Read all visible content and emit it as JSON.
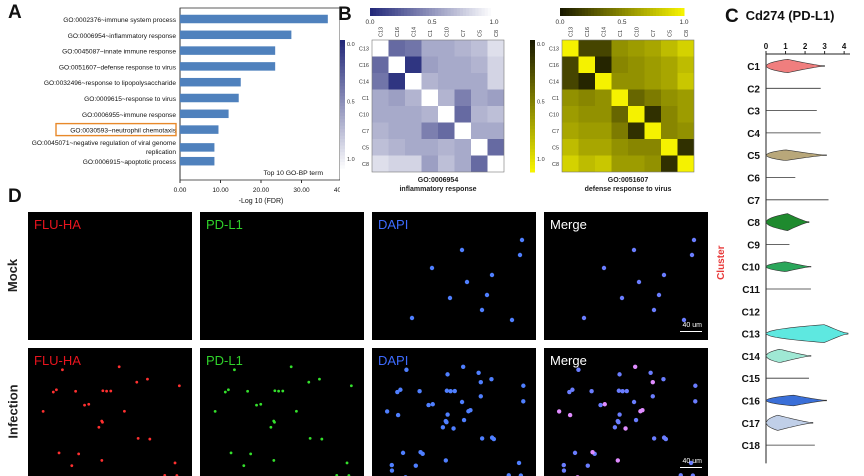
{
  "panels": {
    "A": "A",
    "B": "B",
    "C": "C",
    "D": "D"
  },
  "chart_data": [
    {
      "type": "bar",
      "panel": "A",
      "orientation": "horizontal",
      "categories": [
        "GO:0002376~immune system process",
        "GO:0006954~inflammatory response",
        "GO:0045087~innate immune response",
        "GO:0051607~defense response to virus",
        "GO:0032496~response to lipopolysaccharide",
        "GO:0009615~response to virus",
        "GO:0006955~immune response",
        "GO:0030593~neutrophil chemotaxis",
        "GO:0045071~negative regulation of viral genome replication",
        "GO:0006915~apoptotic process"
      ],
      "values": [
        36.5,
        27.5,
        23.5,
        23.5,
        15,
        14.5,
        12,
        9.5,
        8.5,
        8.5
      ],
      "highlight_index": 7,
      "highlight_color": "#e8892a",
      "bar_color": "#4f81bd",
      "xlabel": "-Log 10 (FDR)",
      "xticks": [
        "0.00",
        "10.00",
        "20.00",
        "30.00",
        "40.00"
      ],
      "xlim": [
        0,
        40
      ],
      "annotation": "Top 10 GO-BP term"
    },
    {
      "type": "heatmap",
      "panel": "B-left",
      "labels": [
        "C13",
        "C16",
        "C14",
        "C1",
        "C10",
        "C7",
        "C5",
        "C8"
      ],
      "colorbar_ticks": [
        "0.0",
        "0.5",
        "1.0"
      ],
      "side_ticks": [
        "0.0",
        "0.5",
        "1.0"
      ],
      "colormap": [
        "#242a7a",
        "#ffffff"
      ],
      "matrix": [
        [
          1,
          0.3,
          0.35,
          0.6,
          0.6,
          0.65,
          0.7,
          0.85
        ],
        [
          0.3,
          1,
          0.05,
          0.55,
          0.6,
          0.6,
          0.65,
          0.8
        ],
        [
          0.35,
          0.05,
          1,
          0.65,
          0.6,
          0.6,
          0.6,
          0.8
        ],
        [
          0.6,
          0.55,
          0.65,
          1,
          0.65,
          0.4,
          0.6,
          0.55
        ],
        [
          0.6,
          0.6,
          0.6,
          0.65,
          1,
          0.3,
          0.65,
          0.7
        ],
        [
          0.65,
          0.6,
          0.6,
          0.4,
          0.3,
          1,
          0.6,
          0.6
        ],
        [
          0.7,
          0.65,
          0.6,
          0.6,
          0.65,
          0.6,
          1,
          0.3
        ],
        [
          0.85,
          0.8,
          0.8,
          0.55,
          0.7,
          0.6,
          0.3,
          1
        ]
      ],
      "caption_line1": "GO:0006954",
      "caption_line2": "inflammatory response"
    },
    {
      "type": "heatmap",
      "panel": "B-right",
      "labels": [
        "C13",
        "C16",
        "C14",
        "C1",
        "C10",
        "C7",
        "C5",
        "C8"
      ],
      "colorbar_ticks": [
        "0.0",
        "0.5",
        "1.0"
      ],
      "side_ticks": [
        "0.0",
        "0.5",
        "1.0"
      ],
      "colormap": [
        "#1a1a00",
        "#f5f200"
      ],
      "matrix": [
        [
          1,
          0.2,
          0.2,
          0.55,
          0.6,
          0.65,
          0.75,
          0.85
        ],
        [
          0.2,
          1,
          0.05,
          0.5,
          0.55,
          0.6,
          0.65,
          0.75
        ],
        [
          0.2,
          0.05,
          1,
          0.55,
          0.55,
          0.6,
          0.65,
          0.8
        ],
        [
          0.55,
          0.5,
          0.55,
          1,
          0.35,
          0.45,
          0.55,
          0.6
        ],
        [
          0.6,
          0.55,
          0.55,
          0.35,
          1,
          0.1,
          0.5,
          0.6
        ],
        [
          0.65,
          0.6,
          0.6,
          0.45,
          0.1,
          1,
          0.5,
          0.55
        ],
        [
          0.75,
          0.65,
          0.65,
          0.55,
          0.5,
          0.5,
          1,
          0.1
        ],
        [
          0.85,
          0.75,
          0.8,
          0.6,
          0.6,
          0.55,
          0.1,
          1
        ]
      ],
      "caption_line1": "GO:0051607",
      "caption_line2": "defense response to virus"
    },
    {
      "type": "violin",
      "panel": "C",
      "title": "Cd274 (PD-L1)",
      "ylabel": "Cluster",
      "xticks": [
        "0",
        "1",
        "2",
        "3",
        "4"
      ],
      "xlim": [
        0,
        4.3
      ],
      "clusters": [
        {
          "name": "C1",
          "color": "#f07e7e",
          "max": 3.0,
          "width": 0.75,
          "peak": 1.1
        },
        {
          "name": "C2",
          "color": "#c0c0c0",
          "max": 2.8,
          "width": 0.02,
          "peak": 1
        },
        {
          "name": "C3",
          "color": "#c0c0c0",
          "max": 2.6,
          "width": 0.02,
          "peak": 1
        },
        {
          "name": "C4",
          "color": "#c0c0c0",
          "max": 2.8,
          "width": 0.02,
          "peak": 1
        },
        {
          "name": "C5",
          "color": "#b8a77a",
          "max": 3.1,
          "width": 0.6,
          "peak": 1.0
        },
        {
          "name": "C6",
          "color": "#c0c0c0",
          "max": 1.5,
          "width": 0.02,
          "peak": 1
        },
        {
          "name": "C7",
          "color": "#c0c0c0",
          "max": 3.2,
          "width": 0.02,
          "peak": 1
        },
        {
          "name": "C8",
          "color": "#1f8a2e",
          "max": 2.2,
          "width": 0.95,
          "peak": 1.1
        },
        {
          "name": "C9",
          "color": "#c0c0c0",
          "max": 1.2,
          "width": 0.02,
          "peak": 1
        },
        {
          "name": "C10",
          "color": "#2aa65a",
          "max": 2.3,
          "width": 0.55,
          "peak": 1.0
        },
        {
          "name": "C11",
          "color": "#c0c0c0",
          "max": 2.3,
          "width": 0.02,
          "peak": 1
        },
        {
          "name": "C12",
          "color": "#c0c0c0",
          "max": 0.1,
          "width": 0.0,
          "peak": 0
        },
        {
          "name": "C13",
          "color": "#5ee8e0",
          "max": 4.2,
          "width": 1.0,
          "peak": 3.0
        },
        {
          "name": "C14",
          "color": "#9fe8d4",
          "max": 2.3,
          "width": 0.75,
          "peak": 0.7
        },
        {
          "name": "C15",
          "color": "#c0c0c0",
          "max": 2.2,
          "width": 0.02,
          "peak": 1
        },
        {
          "name": "C16",
          "color": "#3a6fd8",
          "max": 3.1,
          "width": 0.6,
          "peak": 1.4
        },
        {
          "name": "C17",
          "color": "#c0cfe8",
          "max": 2.4,
          "width": 0.85,
          "peak": 0.6
        },
        {
          "name": "C18",
          "color": "#c0c0c0",
          "max": 2.5,
          "width": 0.02,
          "peak": 1
        }
      ]
    }
  ],
  "microscopy": {
    "columns": [
      {
        "label": "FLU-HA",
        "color": "#e8141e",
        "cell_color": "#ff3030"
      },
      {
        "label": "PD-L1",
        "color": "#2fd12a",
        "cell_color": "#34e02c"
      },
      {
        "label": "DAPI",
        "color": "#3d6bff",
        "cell_color": "#4f7fff"
      },
      {
        "label": "Merge",
        "color": "#ffffff",
        "cell_color": "#6a7dff"
      }
    ],
    "rows": [
      "Mock",
      "Infection"
    ],
    "scale_bar": "40 um"
  }
}
